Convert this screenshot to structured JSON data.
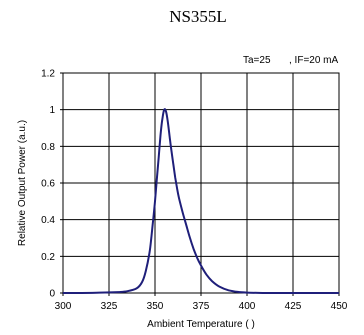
{
  "chart_data": {
    "type": "line",
    "title": "NS355L",
    "annotation_left": "Ta=25",
    "annotation_right": ", IF=20 mA",
    "xlabel": "Ambient Temperature (  )",
    "ylabel": "Relative Output Power (a.u.)",
    "xlim": [
      300,
      450
    ],
    "ylim": [
      0,
      1.2
    ],
    "xticks": [
      "300",
      "325",
      "350",
      "375",
      "400",
      "425",
      "450"
    ],
    "yticks": [
      "0",
      "0.2",
      "0.4",
      "0.6",
      "0.8",
      "1",
      "1.2"
    ],
    "grid": true,
    "colors": {
      "line": "#1f1f7a",
      "grid": "#000000",
      "axis": "#000000"
    },
    "series": [
      {
        "x": [
          300,
          310,
          320,
          330,
          335,
          340,
          343,
          345,
          347,
          348,
          349,
          350,
          351,
          352,
          353,
          354,
          355,
          356,
          357,
          358,
          359,
          360,
          361,
          362,
          363,
          365,
          367,
          369,
          371,
          373,
          375,
          378,
          381,
          385,
          390,
          395,
          400,
          410,
          420,
          430,
          450
        ],
        "y": [
          0,
          0,
          0.002,
          0.005,
          0.01,
          0.025,
          0.06,
          0.12,
          0.22,
          0.3,
          0.4,
          0.5,
          0.62,
          0.74,
          0.86,
          0.95,
          1.0,
          0.99,
          0.93,
          0.85,
          0.77,
          0.7,
          0.63,
          0.57,
          0.52,
          0.44,
          0.37,
          0.3,
          0.24,
          0.19,
          0.15,
          0.1,
          0.065,
          0.035,
          0.015,
          0.006,
          0.002,
          0,
          0,
          0,
          0
        ]
      }
    ]
  }
}
